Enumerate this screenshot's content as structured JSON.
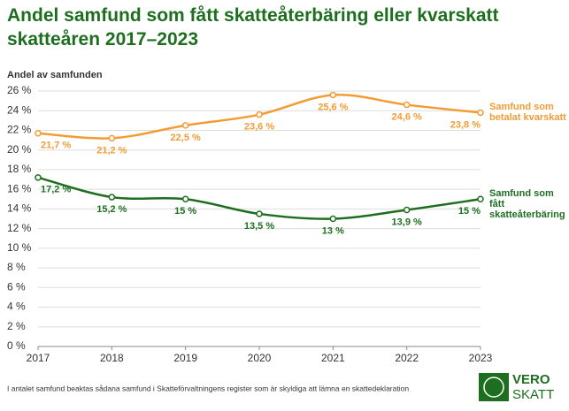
{
  "chart_data": {
    "type": "line",
    "title": "Andel samfund som fått skatteåterbäring eller kvarskatt skatteåren 2017–2023",
    "y_label": "Andel av samfunden",
    "categories": [
      "2017",
      "2018",
      "2019",
      "2020",
      "2021",
      "2022",
      "2023"
    ],
    "series": [
      {
        "name": "Samfund som betalat kvarskatt",
        "color": "#f39c34",
        "values": [
          21.7,
          21.2,
          22.5,
          23.6,
          25.6,
          24.6,
          23.8
        ],
        "value_labels": [
          "21,7 %",
          "21,2 %",
          "22,5 %",
          "23,6 %",
          "25,6 %",
          "24,6 %",
          "23,8 %"
        ]
      },
      {
        "name": "Samfund som fått skatteåterbäring",
        "color": "#1d6e1f",
        "values": [
          17.2,
          15.2,
          15,
          13.5,
          13,
          13.9,
          15
        ],
        "value_labels": [
          "17,2 %",
          "15,2 %",
          "15 %",
          "13,5 %",
          "13 %",
          "13,9 %",
          "15 %"
        ]
      }
    ],
    "ylim": [
      0,
      26
    ],
    "yticks": [
      {
        "value": 0,
        "label": "0 %"
      },
      {
        "value": 2,
        "label": "2 %"
      },
      {
        "value": 4,
        "label": "4 %"
      },
      {
        "value": 6,
        "label": "6 %"
      },
      {
        "value": 8,
        "label": "8 %"
      },
      {
        "value": 10,
        "label": "10 %"
      },
      {
        "value": 12,
        "label": "12 %"
      },
      {
        "value": 14,
        "label": "14 %"
      },
      {
        "value": 16,
        "label": "16 %"
      },
      {
        "value": 18,
        "label": "18 %"
      },
      {
        "value": 20,
        "label": "20 %"
      },
      {
        "value": 22,
        "label": "22 %"
      },
      {
        "value": 24,
        "label": "24 %"
      },
      {
        "value": 26,
        "label": "26 %"
      }
    ],
    "grid": true,
    "footnote": "I antalet samfund beaktas sådana samfund i Skatteförvaltningens register som är skyldiga att lämna en skattedeklaration",
    "logo": [
      "VERO",
      "SKATT"
    ]
  }
}
